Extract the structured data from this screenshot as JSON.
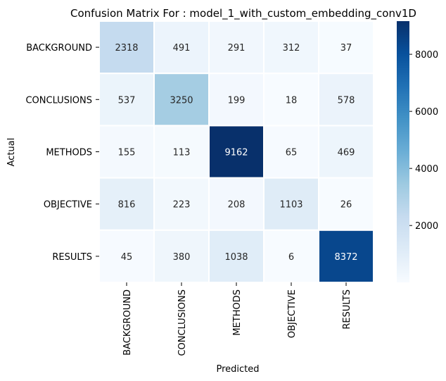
{
  "chart_data": {
    "type": "heatmap",
    "title": "Confusion Matrix For : model_1_with_custom_embedding_conv1D",
    "xlabel": "Predicted",
    "ylabel": "Actual",
    "x_categories": [
      "BACKGROUND",
      "CONCLUSIONS",
      "METHODS",
      "OBJECTIVE",
      "RESULTS"
    ],
    "y_categories": [
      "BACKGROUND",
      "CONCLUSIONS",
      "METHODS",
      "OBJECTIVE",
      "RESULTS"
    ],
    "values": [
      [
        2318,
        491,
        291,
        312,
        37
      ],
      [
        537,
        3250,
        199,
        18,
        578
      ],
      [
        155,
        113,
        9162,
        65,
        469
      ],
      [
        816,
        223,
        208,
        1103,
        26
      ],
      [
        45,
        380,
        1038,
        6,
        8372
      ]
    ],
    "colormap": "Blues",
    "colorbar": {
      "vmin": 6,
      "vmax": 9162,
      "ticks": [
        2000,
        4000,
        6000,
        8000
      ],
      "tick_labels": [
        "2000",
        "4000",
        "6000",
        "8000"
      ]
    },
    "cell_separator_color": "#ffffff"
  }
}
